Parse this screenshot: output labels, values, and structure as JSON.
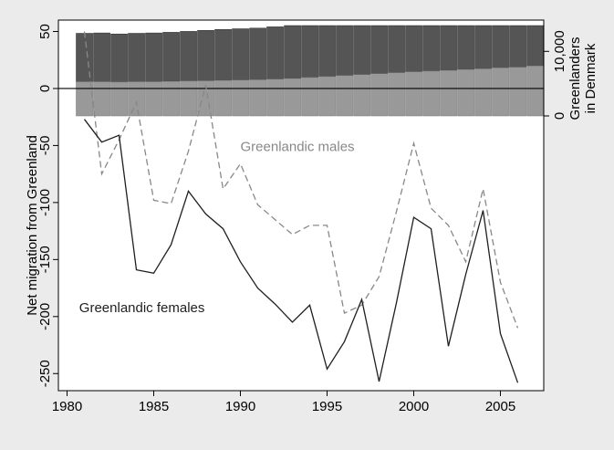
{
  "chart_data": {
    "type": "line",
    "title": "",
    "grid": false,
    "x": {
      "ticks": [
        1980,
        1985,
        1990,
        1995,
        2000,
        2005
      ],
      "range": [
        1979.5,
        2007.5
      ]
    },
    "main": {
      "ylabel": "Net migration from Greenland",
      "yticks": [
        50,
        0,
        -50,
        -100,
        -150,
        -200,
        -250
      ],
      "ylim": [
        -265,
        60
      ],
      "zero_line": true,
      "series": [
        {
          "name": "Greenlandic males",
          "style": "dashed",
          "color": "#888888",
          "label_at": [
            1990,
            -55
          ],
          "x": [
            1981,
            1982,
            1983,
            1984,
            1985,
            1986,
            1987,
            1988,
            1989,
            1990,
            1991,
            1992,
            1993,
            1994,
            1995,
            1996,
            1997,
            1998,
            1999,
            2000,
            2001,
            2002,
            2003,
            2004,
            2005,
            2006
          ],
          "values": [
            50,
            -75,
            -45,
            -12,
            -98,
            -101,
            -55,
            3,
            -88,
            -66,
            -102,
            -115,
            -128,
            -120,
            -120,
            -197,
            -190,
            -165,
            -108,
            -48,
            -105,
            -120,
            -152,
            -88,
            -170,
            -210
          ]
        },
        {
          "name": "Greenlandic females",
          "style": "solid",
          "color": "#1f1f1f",
          "label_at": [
            1980.7,
            -196
          ],
          "x": [
            1981,
            1982,
            1983,
            1984,
            1985,
            1986,
            1987,
            1988,
            1989,
            1990,
            1991,
            1992,
            1993,
            1994,
            1995,
            1996,
            1997,
            1998,
            1999,
            2000,
            2001,
            2002,
            2003,
            2004,
            2005,
            2006
          ],
          "values": [
            -27,
            -47,
            -41,
            -159,
            -162,
            -137,
            -90,
            -110,
            -123,
            -152,
            -175,
            -189,
            -205,
            -190,
            -246,
            -222,
            -185,
            -257,
            -188,
            -113,
            -123,
            -226,
            -163,
            -107,
            -215,
            -258
          ]
        }
      ]
    },
    "top": {
      "ylabel_lines": [
        "Greenlanders",
        "in Denmark"
      ],
      "yticks": [
        0,
        10000
      ],
      "ytick_labels": [
        "0",
        "10,000"
      ],
      "ylim": [
        0,
        14000
      ],
      "series": [
        {
          "name": "",
          "component": "lower",
          "color": "#999999",
          "x": [
            1981,
            1982,
            1983,
            1984,
            1985,
            1986,
            1987,
            1988,
            1989,
            1990,
            1991,
            1992,
            1993,
            1994,
            1995,
            1996,
            1997,
            1998,
            1999,
            2000,
            2001,
            2002,
            2003,
            2004,
            2005,
            2006,
            2007
          ],
          "values": [
            5300,
            5300,
            5250,
            5300,
            5300,
            5350,
            5400,
            5450,
            5500,
            5550,
            5600,
            5700,
            5800,
            5950,
            6100,
            6250,
            6400,
            6550,
            6700,
            6850,
            6950,
            7050,
            7200,
            7300,
            7450,
            7550,
            7750
          ]
        },
        {
          "name": "",
          "component": "total",
          "color": "#555555",
          "x": [
            1981,
            1982,
            1983,
            1984,
            1985,
            1986,
            1987,
            1988,
            1989,
            1990,
            1991,
            1992,
            1993,
            1994,
            1995,
            1996,
            1997,
            1998,
            1999,
            2000,
            2001,
            2002,
            2003,
            2004,
            2005,
            2006,
            2007
          ],
          "values": [
            12800,
            12850,
            12700,
            12800,
            12850,
            12950,
            13100,
            13250,
            13400,
            13500,
            13600,
            13800,
            14000,
            14250,
            14500,
            14750,
            14900,
            15100,
            15350,
            15550,
            15700,
            15850,
            16000,
            16150,
            16300,
            16450,
            16650
          ]
        }
      ]
    }
  }
}
